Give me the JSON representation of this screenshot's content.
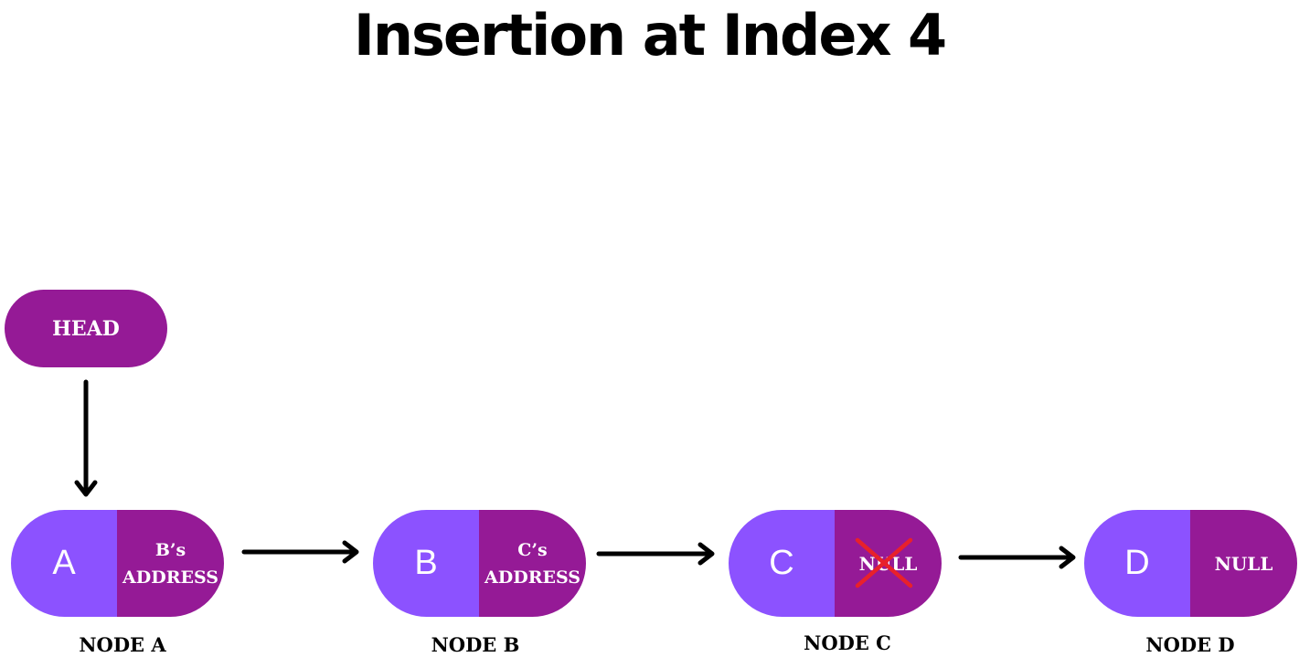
{
  "title": "Insertion at Index 4",
  "colors": {
    "value_half": "#8c52ff",
    "pointer_half": "#951a96",
    "head": "#951a96",
    "cross": "#e8212b",
    "arrow": "#000000"
  },
  "head": {
    "label": "HEAD"
  },
  "nodes": [
    {
      "value": "A",
      "pointer_line1": "B’s",
      "pointer_line2": "ADDRESS",
      "caption": "NODE A",
      "crossed": false
    },
    {
      "value": "B",
      "pointer_line1": "C’s",
      "pointer_line2": "ADDRESS",
      "caption": "NODE B",
      "crossed": false
    },
    {
      "value": "C",
      "pointer_line1": "NULL",
      "pointer_line2": "",
      "caption": "NODE C",
      "crossed": true
    },
    {
      "value": "D",
      "pointer_line1": "NULL",
      "pointer_line2": "",
      "caption": "NODE D",
      "crossed": false
    }
  ]
}
